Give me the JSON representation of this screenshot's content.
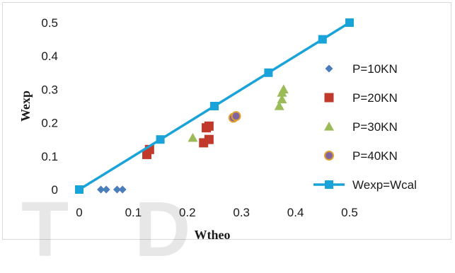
{
  "chart_data": {
    "type": "scatter",
    "title": "",
    "xlabel": "Wtheo",
    "ylabel": "Wexp",
    "xlim": [
      0,
      0.5
    ],
    "ylim": [
      0,
      0.5
    ],
    "x_ticks": [
      "0",
      "0.1",
      "0.2",
      "0.3",
      "0.4",
      "0.5"
    ],
    "y_ticks": [
      "0",
      "0.1",
      "0.2",
      "0.3",
      "0.4",
      "0.5"
    ],
    "grid": false,
    "legend_position": "right",
    "series": [
      {
        "name": "P=10KN",
        "marker": "diamond",
        "color": "#4a7ebb",
        "points": [
          [
            0.04,
            0.0
          ],
          [
            0.05,
            0.0
          ],
          [
            0.07,
            0.0
          ],
          [
            0.08,
            0.0
          ]
        ]
      },
      {
        "name": "P=20KN",
        "marker": "square",
        "color": "#c0392b",
        "points": [
          [
            0.125,
            0.105
          ],
          [
            0.13,
            0.12
          ],
          [
            0.23,
            0.14
          ],
          [
            0.24,
            0.15
          ],
          [
            0.235,
            0.185
          ],
          [
            0.24,
            0.19
          ]
        ]
      },
      {
        "name": "P=30KN",
        "marker": "triangle",
        "color": "#9bbb59",
        "points": [
          [
            0.21,
            0.155
          ],
          [
            0.37,
            0.25
          ],
          [
            0.375,
            0.27
          ],
          [
            0.375,
            0.29
          ],
          [
            0.378,
            0.3
          ]
        ]
      },
      {
        "name": "P=40KN",
        "marker": "circle",
        "color": "#8064a2",
        "edge": "#e0a030",
        "points": [
          [
            0.285,
            0.215
          ],
          [
            0.29,
            0.22
          ]
        ]
      },
      {
        "name": "Wexp=Wcal",
        "marker": "square-line",
        "color": "#1aa3d8",
        "points": [
          [
            0.0,
            0.0
          ],
          [
            0.15,
            0.15
          ],
          [
            0.25,
            0.25
          ],
          [
            0.35,
            0.35
          ],
          [
            0.45,
            0.45
          ],
          [
            0.5,
            0.5
          ]
        ]
      }
    ]
  },
  "watermark": {
    "text": "TD"
  }
}
